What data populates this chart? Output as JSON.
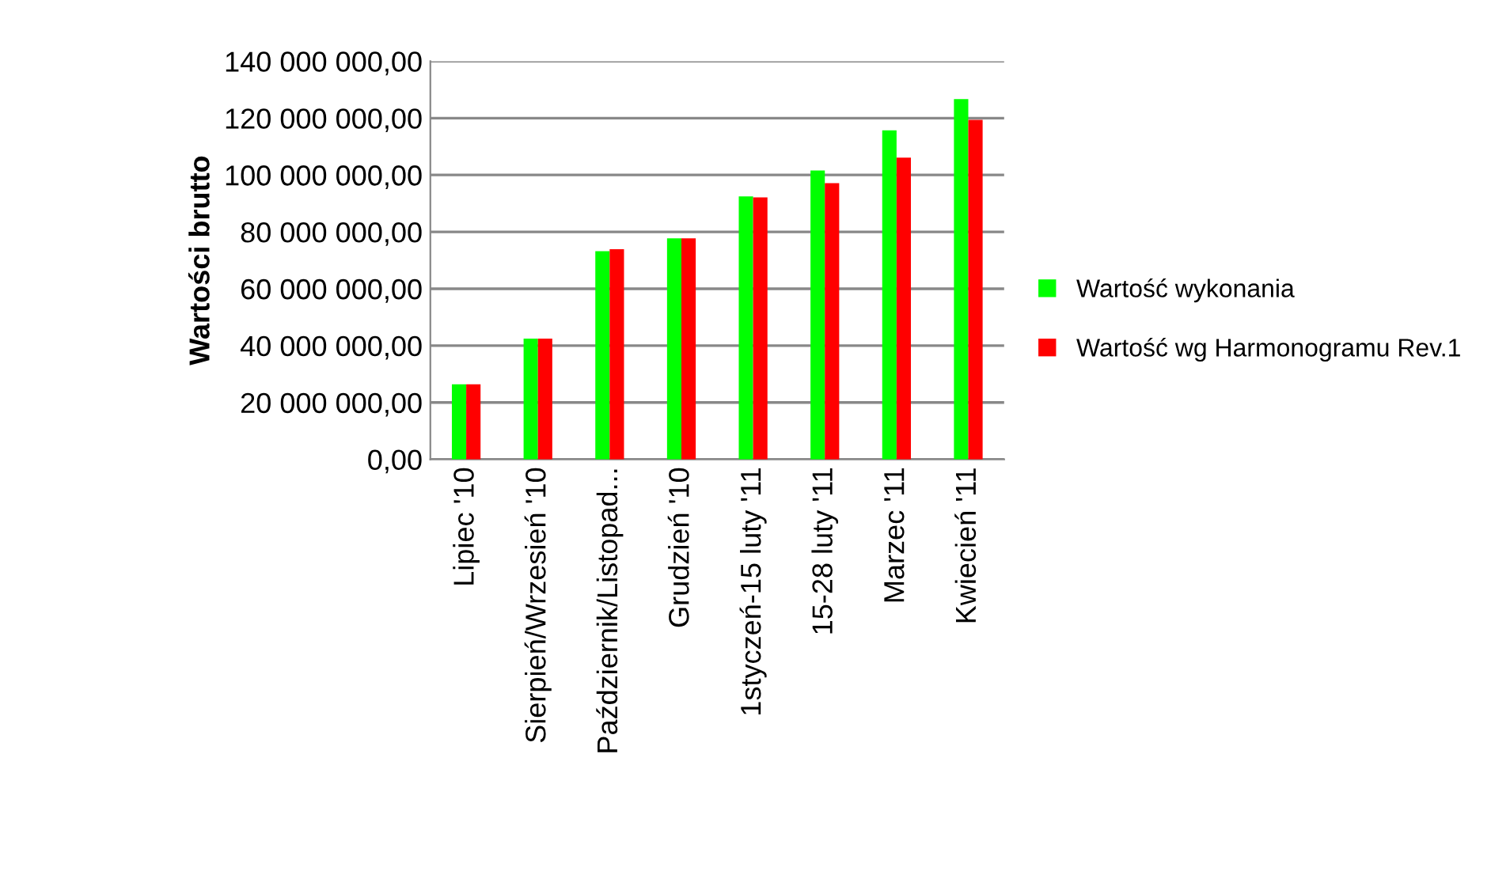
{
  "chart_data": {
    "type": "bar",
    "ylabel": "Wartości brutto",
    "categories": [
      "Lipiec '10",
      "Sierpień/Wrzesień '10",
      "Październik/Listopad...",
      "Grudzień '10",
      "1styczeń-15 luty '11",
      "15-28 luty '11",
      "Marzec '11",
      "Kwiecień '11"
    ],
    "series": [
      {
        "name": "Wartość wykonania",
        "color": "#00ff00",
        "values": [
          26400000,
          42500000,
          73200000,
          77700000,
          92500000,
          101600000,
          115700000,
          126700000
        ]
      },
      {
        "name": "Wartość wg Harmonogramu Rev.1",
        "color": "#ff0000",
        "values": [
          26400000,
          42500000,
          73900000,
          77700000,
          92100000,
          97100000,
          106100000,
          119400000
        ]
      }
    ],
    "ylim": [
      0,
      140000000
    ],
    "yticks": [
      {
        "value": 0,
        "label": "0,00"
      },
      {
        "value": 20000000,
        "label": "20 000 000,00"
      },
      {
        "value": 40000000,
        "label": "40 000 000,00"
      },
      {
        "value": 60000000,
        "label": "60 000 000,00"
      },
      {
        "value": 80000000,
        "label": "80 000 000,00"
      },
      {
        "value": 100000000,
        "label": "100 000 000,00"
      },
      {
        "value": 120000000,
        "label": "120 000 000,00"
      },
      {
        "value": 140000000,
        "label": "140 000 000,00"
      }
    ],
    "grid": "y",
    "legend": "right"
  }
}
